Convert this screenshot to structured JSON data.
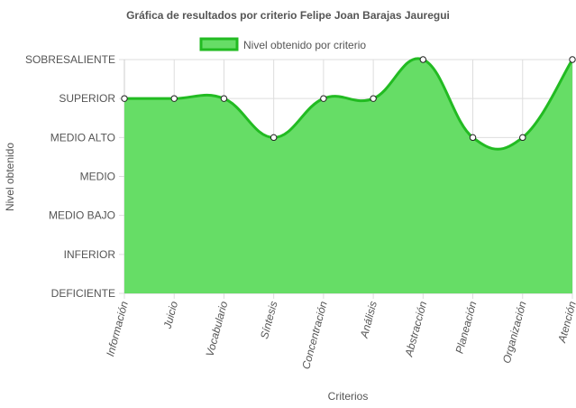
{
  "chart_data": {
    "type": "area",
    "title": "Gráfica de resultados por criterio Felipe Joan Barajas Jauregui",
    "xlabel": "Criterios",
    "ylabel": "Nivel obtenido",
    "legend_position": "top",
    "grid": true,
    "y_levels": [
      "DEFICIENTE",
      "INFERIOR",
      "MEDIO BAJO",
      "MEDIO",
      "MEDIO ALTO",
      "SUPERIOR",
      "SOBRESALIENTE"
    ],
    "ylim": [
      "DEFICIENTE",
      "SOBRESALIENTE"
    ],
    "categories": [
      "Información",
      "Juicio",
      "Vocabulario",
      "Síntesis",
      "Concentración",
      "Análisis",
      "Abstracción",
      "Planeación",
      "Organización",
      "Atención"
    ],
    "series": [
      {
        "name": "Nivel obtenido por criterio",
        "values": [
          "SUPERIOR",
          "SUPERIOR",
          "SUPERIOR",
          "MEDIO ALTO",
          "SUPERIOR",
          "SUPERIOR",
          "SOBRESALIENTE",
          "MEDIO ALTO",
          "MEDIO ALTO",
          "SOBRESALIENTE"
        ],
        "fill_color": "#66dd66",
        "line_color": "#22bb22"
      }
    ]
  }
}
